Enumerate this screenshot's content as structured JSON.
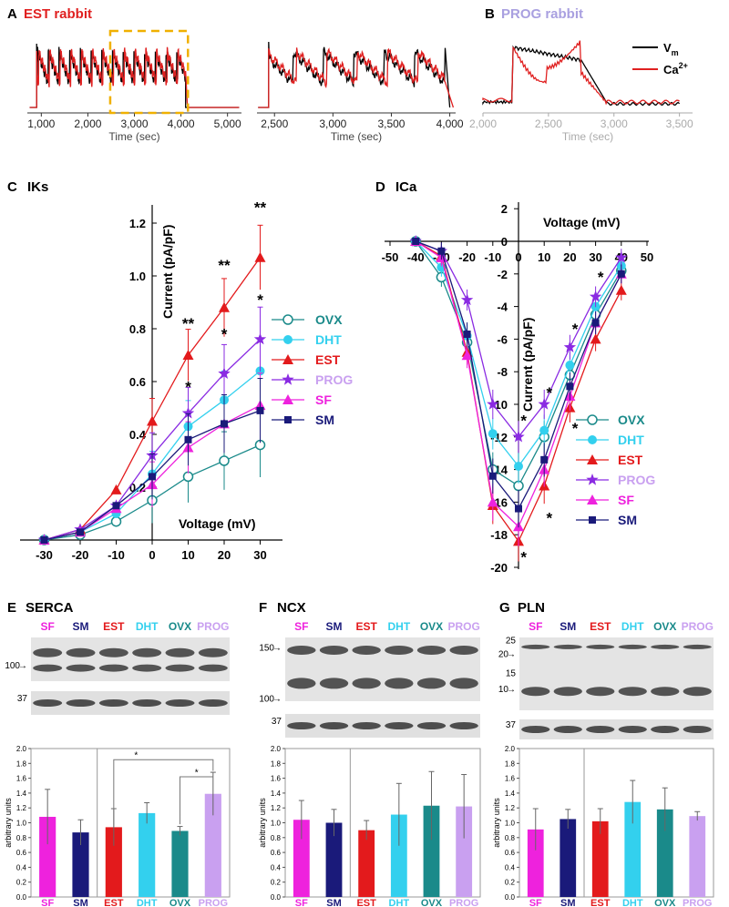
{
  "panels": {
    "A": {
      "letter": "A",
      "title": "EST rabbit"
    },
    "B": {
      "letter": "B",
      "title": "PROG rabbit"
    },
    "C": {
      "letter": "C",
      "title": "IKs"
    },
    "D": {
      "letter": "D",
      "title": "ICa"
    },
    "E": {
      "letter": "E",
      "title": "SERCA"
    },
    "F": {
      "letter": "F",
      "title": "NCX"
    },
    "G": {
      "letter": "G",
      "title": "PLN"
    }
  },
  "trace_legend": [
    {
      "label": "V",
      "sub": "m",
      "color": "#000000"
    },
    {
      "label": "Ca",
      "sup": "2+",
      "color": "#e02020"
    }
  ],
  "colors": {
    "OVX": "#1a8a8a",
    "DHT": "#33d0ee",
    "EST": "#e31a1c",
    "PROG": "#8a2be2",
    "SF": "#ee22dd",
    "SM": "#1a1a7a",
    "PROG_label": "#c9a0f0",
    "title_red": "#e02020",
    "title_prog": "#a9a0e0"
  },
  "chart_data": [
    {
      "panel": "A",
      "type": "line",
      "xlabel": "Time (sec)",
      "xticks": [
        "1,000",
        "2,000",
        "3,000",
        "4,000",
        "5,000"
      ],
      "xlim": [
        700,
        5300
      ],
      "series": [
        {
          "name": "V",
          "color": "#000000"
        },
        {
          "name": "Ca2+",
          "color": "#e02020"
        }
      ]
    },
    {
      "panel": "A-zoom",
      "type": "line",
      "xlabel": "Time (sec)",
      "xticks": [
        "2,500",
        "3,000",
        "3,500",
        "4,000"
      ],
      "xlim": [
        2350,
        4050
      ]
    },
    {
      "panel": "B",
      "type": "line",
      "xlabel": "Time (sec)",
      "xticks": [
        "2,000",
        "2,500",
        "3,000",
        "3,500"
      ],
      "xlim": [
        2000,
        3600
      ]
    },
    {
      "panel": "C",
      "type": "line",
      "title": "IKs",
      "xlabel": "Voltage (mV)",
      "ylabel": "Current (pA/pF)",
      "x": [
        -30,
        -20,
        -10,
        0,
        10,
        20,
        30
      ],
      "xticks": [
        "-30",
        "-20",
        "-10",
        "0",
        "10",
        "20",
        "30"
      ],
      "yticks": [
        "0.2",
        "0.4",
        "0.6",
        "0.8",
        "1.0",
        "1.2"
      ],
      "ylim": [
        0.0,
        1.3
      ],
      "series": [
        {
          "name": "OVX",
          "values": [
            0.0,
            0.02,
            0.07,
            0.15,
            0.24,
            0.3,
            0.36
          ]
        },
        {
          "name": "DHT",
          "values": [
            0.0,
            0.03,
            0.1,
            0.25,
            0.43,
            0.53,
            0.64
          ]
        },
        {
          "name": "EST",
          "values": [
            0.0,
            0.04,
            0.19,
            0.45,
            0.7,
            0.88,
            1.07
          ]
        },
        {
          "name": "PROG",
          "values": [
            0.0,
            0.04,
            0.13,
            0.32,
            0.48,
            0.63,
            0.76
          ]
        },
        {
          "name": "SF",
          "values": [
            0.0,
            0.03,
            0.12,
            0.21,
            0.35,
            0.44,
            0.51
          ]
        },
        {
          "name": "SM",
          "values": [
            0.0,
            0.03,
            0.13,
            0.24,
            0.38,
            0.44,
            0.49
          ]
        }
      ],
      "annotations": [
        {
          "x": 10,
          "y": 0.8,
          "text": "**"
        },
        {
          "x": 10,
          "y": 0.56,
          "text": "*"
        },
        {
          "x": 20,
          "y": 1.02,
          "text": "**"
        },
        {
          "x": 20,
          "y": 0.76,
          "text": "*"
        },
        {
          "x": 30,
          "y": 1.24,
          "text": "**"
        },
        {
          "x": 30,
          "y": 0.89,
          "text": "*"
        }
      ]
    },
    {
      "panel": "D",
      "type": "line",
      "title": "ICa",
      "xlabel": "Voltage (mV)",
      "ylabel": "Current (pA/pF)",
      "x": [
        -40,
        -30,
        -20,
        -10,
        0,
        10,
        20,
        30,
        40
      ],
      "xticks": [
        "-50",
        "-40",
        "-30",
        "-20",
        "-10",
        "0",
        "10",
        "20",
        "30",
        "40",
        "50"
      ],
      "yticks": [
        "2",
        "0",
        "-2",
        "-4",
        "-6",
        "-8",
        "-10",
        "-12",
        "-14",
        "-16",
        "-18",
        "-20"
      ],
      "ylim": [
        -20,
        2
      ],
      "series": [
        {
          "name": "OVX",
          "values": [
            0,
            -2.2,
            -6.2,
            -14.0,
            -15.0,
            -12.0,
            -8.2,
            -4.5,
            -1.8
          ]
        },
        {
          "name": "DHT",
          "values": [
            0,
            -1.6,
            -5.8,
            -11.8,
            -13.8,
            -11.6,
            -7.6,
            -4.0,
            -1.5
          ]
        },
        {
          "name": "EST",
          "values": [
            0,
            -0.9,
            -6.8,
            -16.2,
            -18.4,
            -15.0,
            -10.2,
            -6.0,
            -3.0
          ]
        },
        {
          "name": "PROG",
          "values": [
            0,
            -0.6,
            -3.6,
            -10.0,
            -12.0,
            -10.0,
            -6.5,
            -3.4,
            -1.0
          ]
        },
        {
          "name": "SF",
          "values": [
            0,
            -1.0,
            -7.0,
            -16.0,
            -17.5,
            -14.0,
            -9.5,
            -5.0,
            -2.0
          ]
        },
        {
          "name": "SM",
          "values": [
            0,
            -0.6,
            -5.7,
            -14.4,
            -16.4,
            -13.4,
            -8.9,
            -5.0,
            -2.0
          ]
        }
      ],
      "annotations": [
        {
          "x": 2,
          "y": -11.3,
          "text": "*"
        },
        {
          "x": 12,
          "y": -9.6,
          "text": "*"
        },
        {
          "x": 12,
          "y": -17.3,
          "text": "*"
        },
        {
          "x": 22,
          "y": -5.7,
          "text": "*"
        },
        {
          "x": 22,
          "y": -11.8,
          "text": "*"
        },
        {
          "x": 32,
          "y": -2.5,
          "text": "*"
        },
        {
          "x": 2,
          "y": -19.7,
          "text": "*"
        }
      ]
    },
    {
      "panel": "E",
      "type": "bar",
      "categories": [
        "SF",
        "SM",
        "EST",
        "DHT",
        "OVX",
        "PROG"
      ],
      "values": [
        1.08,
        0.87,
        0.94,
        1.13,
        0.89,
        1.39
      ],
      "errors": [
        0.37,
        0.17,
        0.25,
        0.14,
        0.06,
        0.29
      ],
      "ylabel": "arbitrary units",
      "yticks": [
        "0.0",
        "0.2",
        "0.4",
        "0.6",
        "0.8",
        "1.0",
        "1.2",
        "1.4",
        "1.6",
        "1.8",
        "2.0"
      ],
      "ylim": [
        0,
        2.0
      ],
      "blot_labels": [
        {
          "text": "100",
          "pos": 0.62,
          "arrow": true
        },
        {
          "text": "37",
          "pos": 0.5,
          "arrow": false,
          "lower": true
        }
      ],
      "sig_brackets": [
        {
          "text": "*"
        },
        {
          "text": "*"
        }
      ]
    },
    {
      "panel": "F",
      "type": "bar",
      "categories": [
        "SF",
        "SM",
        "EST",
        "DHT",
        "OVX",
        "PROG"
      ],
      "values": [
        1.04,
        1.0,
        0.9,
        1.11,
        1.23,
        1.22
      ],
      "errors": [
        0.26,
        0.18,
        0.13,
        0.42,
        0.46,
        0.43
      ],
      "ylabel": "arbitrary units",
      "yticks": [
        "0.0",
        "0.2",
        "0.4",
        "0.6",
        "0.8",
        "1.0",
        "1.2",
        "1.4",
        "1.6",
        "1.8",
        "2.0"
      ],
      "ylim": [
        0,
        2.0
      ],
      "blot_labels": [
        {
          "text": "150",
          "pos": 0.15,
          "arrow": true
        },
        {
          "text": "100",
          "pos": 0.95,
          "arrow": true
        },
        {
          "text": "37",
          "pos": 0.5,
          "arrow": false,
          "lower": true
        }
      ]
    },
    {
      "panel": "G",
      "type": "bar",
      "categories": [
        "SF",
        "SM",
        "EST",
        "DHT",
        "OVX",
        "PROG"
      ],
      "values": [
        0.91,
        1.05,
        1.02,
        1.28,
        1.18,
        1.09
      ],
      "errors": [
        0.28,
        0.13,
        0.17,
        0.29,
        0.29,
        0.06
      ],
      "ylabel": "arbitrary units",
      "yticks": [
        "0.0",
        "0.2",
        "0.4",
        "0.6",
        "0.8",
        "1.0",
        "1.2",
        "1.4",
        "1.6",
        "1.8",
        "2.0"
      ],
      "ylim": [
        0,
        2.0
      ],
      "blot_labels": [
        {
          "text": "25",
          "pos": 0.03,
          "arrow": false
        },
        {
          "text": "20",
          "pos": 0.22,
          "arrow": true
        },
        {
          "text": "15",
          "pos": 0.48,
          "arrow": false
        },
        {
          "text": "10",
          "pos": 0.7,
          "arrow": true
        },
        {
          "text": "37",
          "pos": 0.5,
          "arrow": false,
          "lower": true
        }
      ]
    }
  ]
}
